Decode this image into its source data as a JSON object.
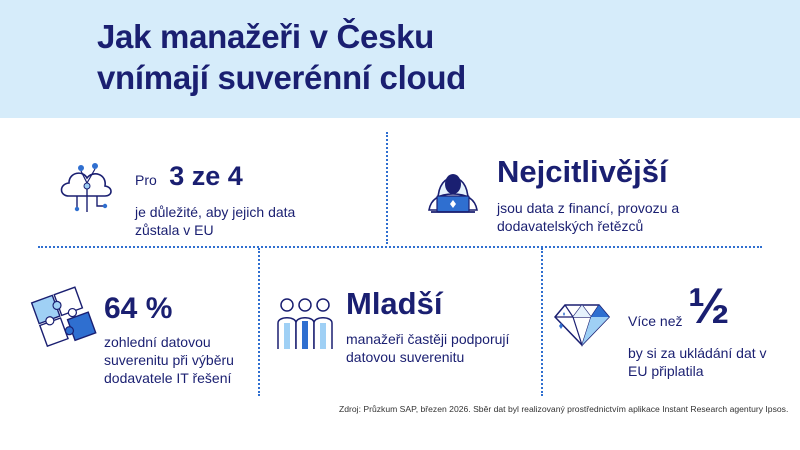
{
  "title": {
    "line1": "Jak manažeři v Česku",
    "line2": "vnímají suverénní cloud"
  },
  "cards": {
    "eu_data": {
      "prefix": "Pro",
      "highlight": "3 ze 4",
      "text_line1": "je důležité, aby jejich data",
      "text_line2": "zůstala v EU",
      "icon": "cloud-network-icon"
    },
    "sensitive": {
      "highlight": "Nejcitlivější",
      "text_line1": "jsou data z financí, provozu a",
      "text_line2": "dodavatelských řetězců",
      "icon": "hooded-hacker-laptop-icon"
    },
    "sovereignty": {
      "highlight": "64 %",
      "text_line1": "zohlední datovou",
      "text_line2": "suverenitu při výběru",
      "text_line3": "dodavatele IT řešení",
      "icon": "puzzle-icon"
    },
    "younger": {
      "highlight": "Mladší",
      "text_line1": "manažeři častěji podporují",
      "text_line2": "datovou suverenitu",
      "icon": "people-group-icon"
    },
    "half": {
      "prefix": "Více než",
      "highlight": "½",
      "text_line1": "by si za ukládání dat v",
      "text_line2": "EU připlatila",
      "icon": "diamond-icon"
    }
  },
  "source": "Zdroj: Průzkum SAP, březen 2026. Sběr dat byl realizovaný prostřednictvím aplikace Instant Research agentury Ipsos.",
  "colors": {
    "header_bg": "#d6ecfa",
    "navy": "#1a1f71",
    "blue": "#2f6fd0",
    "light_blue": "#9fd0f5"
  }
}
